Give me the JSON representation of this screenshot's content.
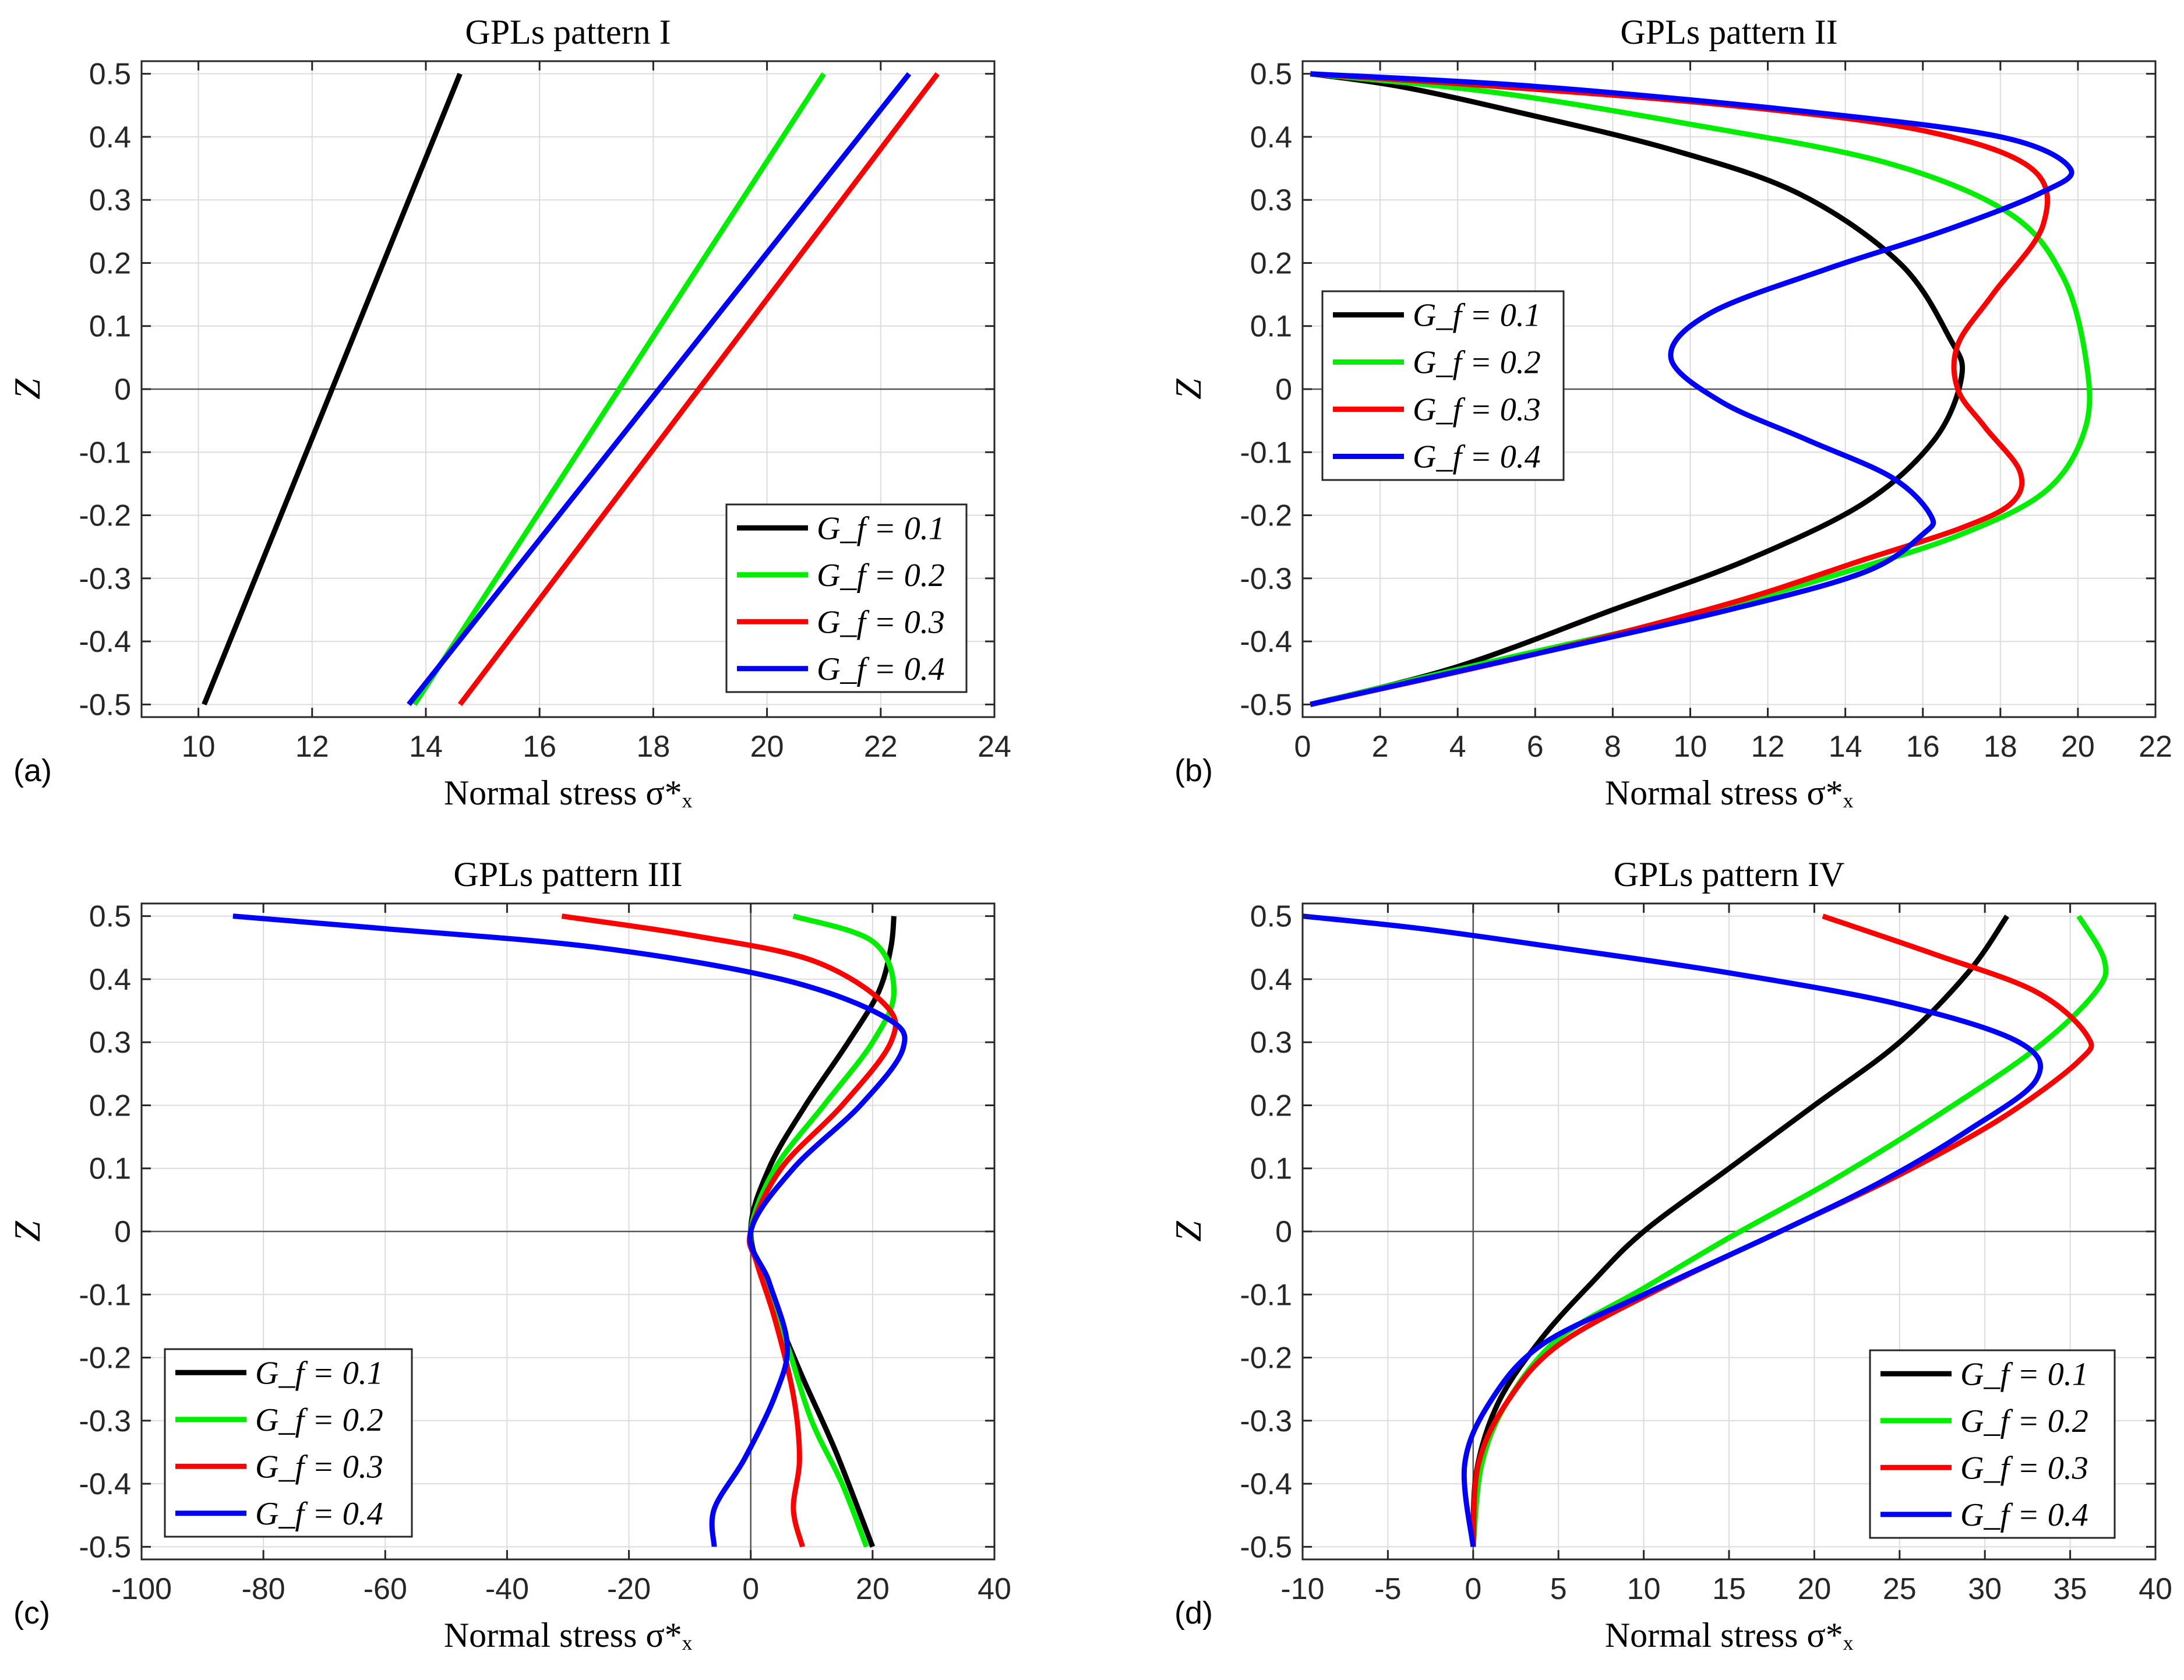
{
  "chart_data": [
    {
      "id": "a",
      "panel_label": "(a)",
      "type": "line",
      "title": "GPLs pattern I",
      "xlabel": "Normal stress σ*ₓ",
      "ylabel": "Z",
      "xlim": [
        9,
        24
      ],
      "ylim": [
        -0.52,
        0.52
      ],
      "xticks": [
        10,
        12,
        14,
        16,
        18,
        20,
        22,
        24
      ],
      "yticks": [
        -0.5,
        -0.4,
        -0.3,
        -0.2,
        -0.1,
        0,
        0.1,
        0.2,
        0.3,
        0.4,
        0.5
      ],
      "grid": true,
      "legend_position": "bottom-right",
      "series": [
        {
          "name": "G_f = 0.1",
          "color": "#000000",
          "points": [
            [
              10.1,
              -0.5
            ],
            [
              14.6,
              0.5
            ]
          ]
        },
        {
          "name": "G_f = 0.2",
          "color": "#00ee00",
          "points": [
            [
              13.8,
              -0.5
            ],
            [
              21.0,
              0.5
            ]
          ]
        },
        {
          "name": "G_f = 0.3",
          "color": "#ff0000",
          "points": [
            [
              14.6,
              -0.5
            ],
            [
              23.0,
              0.5
            ]
          ]
        },
        {
          "name": "G_f = 0.4",
          "color": "#0000ff",
          "points": [
            [
              13.7,
              -0.5
            ],
            [
              22.5,
              0.5
            ]
          ]
        }
      ]
    },
    {
      "id": "b",
      "panel_label": "(b)",
      "type": "line",
      "title": "GPLs pattern II",
      "xlabel": "Normal stress σ*ₓ",
      "ylabel": "Z",
      "xlim": [
        0,
        22
      ],
      "ylim": [
        -0.52,
        0.52
      ],
      "xticks": [
        0,
        2,
        4,
        6,
        8,
        10,
        12,
        14,
        16,
        18,
        20,
        22
      ],
      "yticks": [
        -0.5,
        -0.4,
        -0.3,
        -0.2,
        -0.1,
        0,
        0.1,
        0.2,
        0.3,
        0.4,
        0.5
      ],
      "grid": true,
      "legend_position": "middle-left",
      "series": [
        {
          "name": "G_f = 0.1",
          "color": "#000000",
          "points": [
            [
              0.2,
              -0.5
            ],
            [
              4,
              -0.44
            ],
            [
              8,
              -0.35
            ],
            [
              11.5,
              -0.27
            ],
            [
              14.5,
              -0.18
            ],
            [
              16.3,
              -0.08
            ],
            [
              17.0,
              0.02
            ],
            [
              16.7,
              0.08
            ],
            [
              15.4,
              0.2
            ],
            [
              12.8,
              0.31
            ],
            [
              9.5,
              0.38
            ],
            [
              5.5,
              0.44
            ],
            [
              2.5,
              0.48
            ],
            [
              0.2,
              0.5
            ]
          ]
        },
        {
          "name": "G_f = 0.2",
          "color": "#00ee00",
          "points": [
            [
              0.2,
              -0.5
            ],
            [
              5,
              -0.43
            ],
            [
              10,
              -0.36
            ],
            [
              14,
              -0.29
            ],
            [
              17,
              -0.23
            ],
            [
              19.2,
              -0.16
            ],
            [
              20.2,
              -0.06
            ],
            [
              20.2,
              0.05
            ],
            [
              19.6,
              0.18
            ],
            [
              18.2,
              0.28
            ],
            [
              15,
              0.36
            ],
            [
              10,
              0.42
            ],
            [
              5,
              0.47
            ],
            [
              0.2,
              0.5
            ]
          ]
        },
        {
          "name": "G_f = 0.3",
          "color": "#ff0000",
          "points": [
            [
              0.2,
              -0.5
            ],
            [
              6,
              -0.42
            ],
            [
              11,
              -0.34
            ],
            [
              14.5,
              -0.27
            ],
            [
              17,
              -0.22
            ],
            [
              18.3,
              -0.18
            ],
            [
              18.5,
              -0.13
            ],
            [
              17.6,
              -0.06
            ],
            [
              16.9,
              0.0
            ],
            [
              16.9,
              0.07
            ],
            [
              17.8,
              0.15
            ],
            [
              19.1,
              0.26
            ],
            [
              18.8,
              0.35
            ],
            [
              16,
              0.41
            ],
            [
              11,
              0.45
            ],
            [
              5,
              0.48
            ],
            [
              0.2,
              0.5
            ]
          ]
        },
        {
          "name": "G_f = 0.4",
          "color": "#0000ff",
          "points": [
            [
              0.2,
              -0.5
            ],
            [
              6,
              -0.42
            ],
            [
              11,
              -0.35
            ],
            [
              14.5,
              -0.29
            ],
            [
              16.0,
              -0.23
            ],
            [
              16.2,
              -0.2
            ],
            [
              15.2,
              -0.14
            ],
            [
              13.0,
              -0.08
            ],
            [
              10.8,
              -0.02
            ],
            [
              9.5,
              0.05
            ],
            [
              10.5,
              0.12
            ],
            [
              13.5,
              0.19
            ],
            [
              16.5,
              0.25
            ],
            [
              19.0,
              0.31
            ],
            [
              19.8,
              0.35
            ],
            [
              18,
              0.4
            ],
            [
              13,
              0.44
            ],
            [
              6,
              0.48
            ],
            [
              0.2,
              0.5
            ]
          ]
        }
      ]
    },
    {
      "id": "c",
      "panel_label": "(c)",
      "type": "line",
      "title": "GPLs pattern III",
      "xlabel": "Normal stress σ*ₓ",
      "ylabel": "Z",
      "xlim": [
        -100,
        40
      ],
      "ylim": [
        -0.52,
        0.52
      ],
      "xticks": [
        -100,
        -80,
        -60,
        -40,
        -20,
        0,
        20,
        40
      ],
      "yticks": [
        -0.5,
        -0.4,
        -0.3,
        -0.2,
        -0.1,
        0,
        0.1,
        0.2,
        0.3,
        0.4,
        0.5
      ],
      "grid": true,
      "legend_position": "bottom-left",
      "series": [
        {
          "name": "G_f = 0.1",
          "color": "#000000",
          "points": [
            [
              20,
              -0.5
            ],
            [
              14,
              -0.35
            ],
            [
              8,
              -0.22
            ],
            [
              3,
              -0.1
            ],
            [
              0,
              0.0
            ],
            [
              3,
              0.1
            ],
            [
              9,
              0.2
            ],
            [
              16,
              0.3
            ],
            [
              21,
              0.38
            ],
            [
              23,
              0.45
            ],
            [
              23.5,
              0.5
            ]
          ]
        },
        {
          "name": "G_f = 0.2",
          "color": "#00ee00",
          "points": [
            [
              19,
              -0.5
            ],
            [
              15,
              -0.4
            ],
            [
              10,
              -0.3
            ],
            [
              6,
              -0.18
            ],
            [
              2,
              -0.07
            ],
            [
              0,
              0.0
            ],
            [
              4,
              0.1
            ],
            [
              12,
              0.2
            ],
            [
              20,
              0.3
            ],
            [
              23.5,
              0.38
            ],
            [
              20,
              0.46
            ],
            [
              7,
              0.5
            ]
          ]
        },
        {
          "name": "G_f = 0.3",
          "color": "#ff0000",
          "points": [
            [
              8.5,
              -0.5
            ],
            [
              7,
              -0.44
            ],
            [
              8,
              -0.36
            ],
            [
              7,
              -0.26
            ],
            [
              4,
              -0.14
            ],
            [
              1,
              -0.05
            ],
            [
              0,
              0.0
            ],
            [
              5,
              0.1
            ],
            [
              15,
              0.2
            ],
            [
              23,
              0.3
            ],
            [
              22,
              0.36
            ],
            [
              10,
              0.43
            ],
            [
              -10,
              0.47
            ],
            [
              -31,
              0.5
            ]
          ]
        },
        {
          "name": "G_f = 0.4",
          "color": "#0000ff",
          "points": [
            [
              -6,
              -0.5
            ],
            [
              -6,
              -0.44
            ],
            [
              -1,
              -0.36
            ],
            [
              4,
              -0.26
            ],
            [
              6,
              -0.18
            ],
            [
              3,
              -0.08
            ],
            [
              0,
              0.0
            ],
            [
              7,
              0.1
            ],
            [
              18,
              0.2
            ],
            [
              25,
              0.29
            ],
            [
              22,
              0.34
            ],
            [
              5,
              0.4
            ],
            [
              -25,
              0.45
            ],
            [
              -60,
              0.48
            ],
            [
              -85,
              0.5
            ]
          ]
        }
      ]
    },
    {
      "id": "d",
      "panel_label": "(d)",
      "type": "line",
      "title": "GPLs pattern IV",
      "xlabel": "Normal stress σ*ₓ",
      "ylabel": "Z",
      "xlim": [
        -10,
        40
      ],
      "ylim": [
        -0.52,
        0.52
      ],
      "xticks": [
        -10,
        -5,
        0,
        5,
        10,
        15,
        20,
        25,
        30,
        35,
        40
      ],
      "yticks": [
        -0.5,
        -0.4,
        -0.3,
        -0.2,
        -0.1,
        0,
        0.1,
        0.2,
        0.3,
        0.4,
        0.5
      ],
      "grid": true,
      "legend_position": "bottom-right",
      "series": [
        {
          "name": "G_f = 0.1",
          "color": "#000000",
          "points": [
            [
              0,
              -0.5
            ],
            [
              0.2,
              -0.38
            ],
            [
              1.5,
              -0.27
            ],
            [
              4,
              -0.17
            ],
            [
              7,
              -0.08
            ],
            [
              10,
              0.0
            ],
            [
              15,
              0.1
            ],
            [
              20,
              0.2
            ],
            [
              25,
              0.3
            ],
            [
              29,
              0.41
            ],
            [
              31.3,
              0.5
            ]
          ]
        },
        {
          "name": "G_f = 0.2",
          "color": "#00ee00",
          "points": [
            [
              0,
              -0.5
            ],
            [
              0.5,
              -0.37
            ],
            [
              2,
              -0.27
            ],
            [
              5,
              -0.17
            ],
            [
              10,
              -0.09
            ],
            [
              15,
              -0.01
            ],
            [
              21,
              0.08
            ],
            [
              27,
              0.18
            ],
            [
              33,
              0.29
            ],
            [
              36.5,
              0.38
            ],
            [
              37,
              0.43
            ],
            [
              35.5,
              0.5
            ]
          ]
        },
        {
          "name": "G_f = 0.3",
          "color": "#ff0000",
          "points": [
            [
              0,
              -0.5
            ],
            [
              0.3,
              -0.37
            ],
            [
              2,
              -0.27
            ],
            [
              5,
              -0.18
            ],
            [
              11,
              -0.09
            ],
            [
              18,
              0.0
            ],
            [
              25,
              0.09
            ],
            [
              31,
              0.18
            ],
            [
              35.5,
              0.27
            ],
            [
              36,
              0.31
            ],
            [
              33,
              0.38
            ],
            [
              27,
              0.44
            ],
            [
              20.5,
              0.5
            ]
          ]
        },
        {
          "name": "G_f = 0.4",
          "color": "#0000ff",
          "points": [
            [
              0,
              -0.5
            ],
            [
              -0.5,
              -0.37
            ],
            [
              1,
              -0.27
            ],
            [
              4,
              -0.18
            ],
            [
              10,
              -0.1
            ],
            [
              18,
              0.0
            ],
            [
              24,
              0.08
            ],
            [
              29,
              0.16
            ],
            [
              33,
              0.24
            ],
            [
              32,
              0.3
            ],
            [
              25,
              0.36
            ],
            [
              15,
              0.41
            ],
            [
              5,
              0.45
            ],
            [
              -3,
              0.48
            ],
            [
              -10,
              0.5
            ]
          ]
        }
      ]
    }
  ]
}
